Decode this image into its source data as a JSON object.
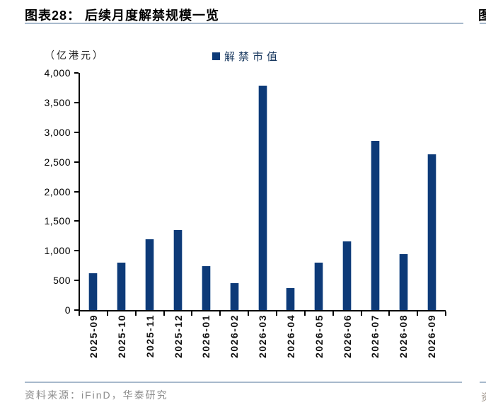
{
  "figure": {
    "title": "图表28：  后续月度解禁规模一览",
    "source": "资料来源：iFinD，华泰研究"
  },
  "neighbor": {
    "partial_title": "图",
    "partial_source": "资"
  },
  "chart_data": {
    "type": "bar",
    "title": "后续月度解禁规模一览",
    "unit_label": "（亿港元）",
    "categories": [
      "2025-09",
      "2025-10",
      "2025-11",
      "2025-12",
      "2026-01",
      "2026-02",
      "2026-03",
      "2026-04",
      "2026-05",
      "2026-06",
      "2026-07",
      "2026-08",
      "2026-09"
    ],
    "series": [
      {
        "name": "解禁市值",
        "values": [
          620,
          800,
          1200,
          1355,
          740,
          455,
          3780,
          370,
          795,
          1155,
          2860,
          945,
          2625
        ]
      }
    ],
    "ylim": [
      0,
      4000
    ],
    "ytick_step": 500,
    "grid": "off",
    "legend_position": "top-center",
    "bar_color": "#0d3a78",
    "axis_color": "#000000"
  },
  "colors": {
    "rule": "#a7b9cc",
    "legend_text": "#17375e",
    "source_text": "#8c8c8c"
  }
}
